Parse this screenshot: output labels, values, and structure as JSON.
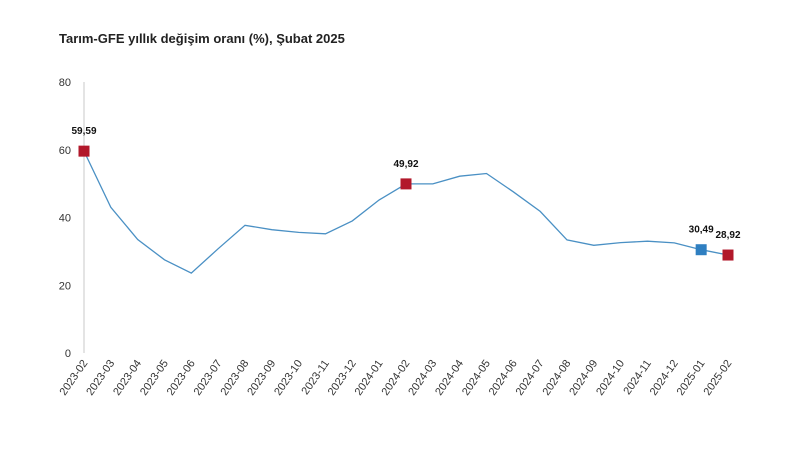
{
  "colors": {
    "line": "#4a90c4",
    "marker_red": "#b2182b",
    "marker_blue": "#2f7fc1",
    "axis": "#c8c8c8"
  },
  "chart_data": {
    "type": "line",
    "title": "Tarım-GFE yıllık değişim oranı (%), Şubat 2025",
    "xlabel": "",
    "ylabel": "",
    "ylim": [
      0,
      80
    ],
    "yticks": [
      0,
      20,
      40,
      60,
      80
    ],
    "grid": false,
    "categories": [
      "2023-02",
      "2023-03",
      "2023-04",
      "2023-05",
      "2023-06",
      "2023-07",
      "2023-08",
      "2023-09",
      "2023-10",
      "2023-11",
      "2023-12",
      "2024-01",
      "2024-02",
      "2024-03",
      "2024-04",
      "2024-05",
      "2024-06",
      "2024-07",
      "2024-08",
      "2024-09",
      "2024-10",
      "2024-11",
      "2024-12",
      "2025-01",
      "2025-02"
    ],
    "series": [
      {
        "values": [
          59.59,
          43.0,
          33.5,
          27.5,
          23.6,
          30.8,
          37.7,
          36.4,
          35.6,
          35.2,
          39.0,
          45.2,
          49.92,
          49.92,
          52.2,
          53.0,
          47.6,
          41.8,
          33.4,
          31.8,
          32.6,
          33.0,
          32.5,
          30.49,
          28.92
        ]
      }
    ],
    "markers": [
      {
        "index": 0,
        "label": "59,59",
        "color": "red"
      },
      {
        "index": 12,
        "label": "49,92",
        "color": "red"
      },
      {
        "index": 23,
        "label": "30,49",
        "color": "blue"
      },
      {
        "index": 24,
        "label": "28,92",
        "color": "red"
      }
    ]
  }
}
